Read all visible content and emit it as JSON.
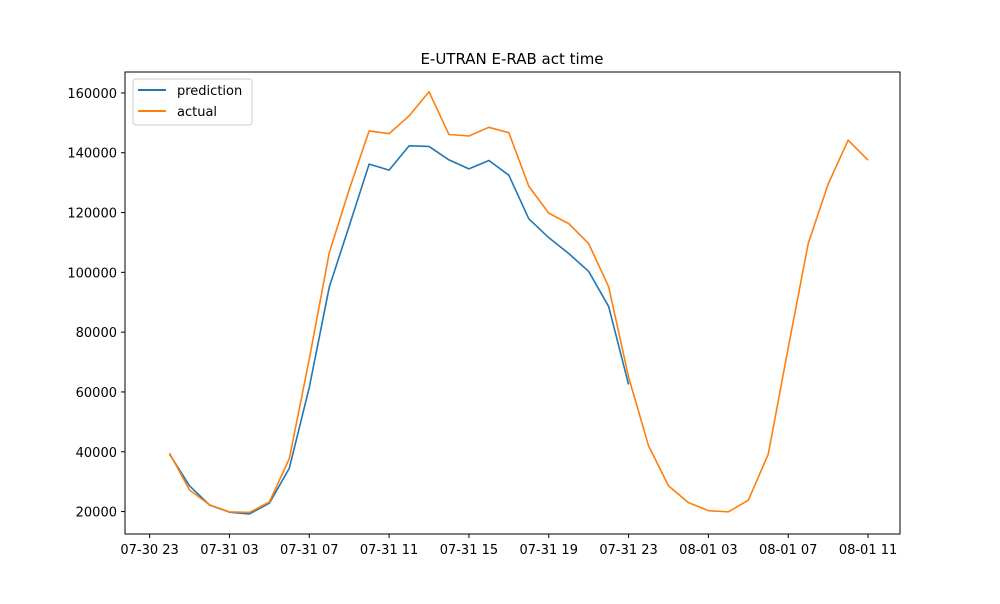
{
  "chart_data": {
    "type": "line",
    "title": "E-UTRAN E-RAB act time",
    "xlabel": "",
    "ylabel": "",
    "x_tick_labels": [
      "07-30 23",
      "07-31 03",
      "07-31 07",
      "07-31 11",
      "07-31 15",
      "07-31 19",
      "07-31 23",
      "08-01 03",
      "08-01 07",
      "08-01 11"
    ],
    "y_tick_labels": [
      "20000",
      "40000",
      "60000",
      "80000",
      "100000",
      "120000",
      "140000",
      "160000"
    ],
    "x_ticks": [
      "2024-07-30 23:00",
      "2024-07-31 03:00",
      "2024-07-31 07:00",
      "2024-07-31 11:00",
      "2024-07-31 15:00",
      "2024-07-31 19:00",
      "2024-07-31 23:00",
      "2024-08-01 03:00",
      "2024-08-01 07:00",
      "2024-08-01 11:00"
    ],
    "y_ticks": [
      20000,
      40000,
      60000,
      80000,
      100000,
      120000,
      140000,
      160000
    ],
    "xlim": [
      "2024-07-30 21:46",
      "2024-08-01 12:36"
    ],
    "ylim": [
      12500,
      167000
    ],
    "grid": false,
    "legend_position": "top-left",
    "series": [
      {
        "name": "prediction",
        "color": "#1f77b4",
        "points": [
          [
            "2024-07-31 00:00",
            39200
          ],
          [
            "2024-07-31 01:00",
            28600
          ],
          [
            "2024-07-31 02:00",
            22200
          ],
          [
            "2024-07-31 03:00",
            19800
          ],
          [
            "2024-07-31 04:00",
            19200
          ],
          [
            "2024-07-31 05:00",
            22800
          ],
          [
            "2024-07-31 06:00",
            34500
          ],
          [
            "2024-07-31 07:00",
            61500
          ],
          [
            "2024-07-31 08:00",
            95000
          ],
          [
            "2024-07-31 09:00",
            115500
          ],
          [
            "2024-07-31 10:00",
            136200
          ],
          [
            "2024-07-31 11:00",
            134200
          ],
          [
            "2024-07-31 12:00",
            142300
          ],
          [
            "2024-07-31 13:00",
            142100
          ],
          [
            "2024-07-31 14:00",
            137600
          ],
          [
            "2024-07-31 15:00",
            134600
          ],
          [
            "2024-07-31 16:00",
            137400
          ],
          [
            "2024-07-31 17:00",
            132500
          ],
          [
            "2024-07-31 18:00",
            117900
          ],
          [
            "2024-07-31 19:00",
            111600
          ],
          [
            "2024-07-31 20:00",
            106300
          ],
          [
            "2024-07-31 21:00",
            100300
          ],
          [
            "2024-07-31 22:00",
            88600
          ],
          [
            "2024-07-31 23:00",
            62500
          ]
        ]
      },
      {
        "name": "actual",
        "color": "#ff7f0e",
        "points": [
          [
            "2024-07-31 00:00",
            39500
          ],
          [
            "2024-07-31 01:00",
            27200
          ],
          [
            "2024-07-31 02:00",
            22300
          ],
          [
            "2024-07-31 03:00",
            19900
          ],
          [
            "2024-07-31 04:00",
            19700
          ],
          [
            "2024-07-31 05:00",
            23200
          ],
          [
            "2024-07-31 06:00",
            37700
          ],
          [
            "2024-07-31 07:00",
            71000
          ],
          [
            "2024-07-31 08:00",
            106500
          ],
          [
            "2024-07-31 09:00",
            127700
          ],
          [
            "2024-07-31 10:00",
            147300
          ],
          [
            "2024-07-31 11:00",
            146400
          ],
          [
            "2024-07-31 12:00",
            152300
          ],
          [
            "2024-07-31 13:00",
            160400
          ],
          [
            "2024-07-31 14:00",
            146100
          ],
          [
            "2024-07-31 15:00",
            145600
          ],
          [
            "2024-07-31 16:00",
            148500
          ],
          [
            "2024-07-31 17:00",
            146700
          ],
          [
            "2024-07-31 18:00",
            128800
          ],
          [
            "2024-07-31 19:00",
            119800
          ],
          [
            "2024-07-31 20:00",
            116300
          ],
          [
            "2024-07-31 21:00",
            109600
          ],
          [
            "2024-07-31 22:00",
            95200
          ],
          [
            "2024-07-31 23:00",
            65000
          ],
          [
            "2024-08-01 00:00",
            42000
          ],
          [
            "2024-08-01 01:00",
            28600
          ],
          [
            "2024-08-01 02:00",
            23000
          ],
          [
            "2024-08-01 03:00",
            20300
          ],
          [
            "2024-08-01 04:00",
            19900
          ],
          [
            "2024-08-01 05:00",
            23800
          ],
          [
            "2024-08-01 06:00",
            39200
          ],
          [
            "2024-08-01 07:00",
            74800
          ],
          [
            "2024-08-01 08:00",
            109600
          ],
          [
            "2024-08-01 09:00",
            129500
          ],
          [
            "2024-08-01 10:00",
            144200
          ],
          [
            "2024-08-01 11:00",
            137500
          ]
        ]
      }
    ]
  }
}
